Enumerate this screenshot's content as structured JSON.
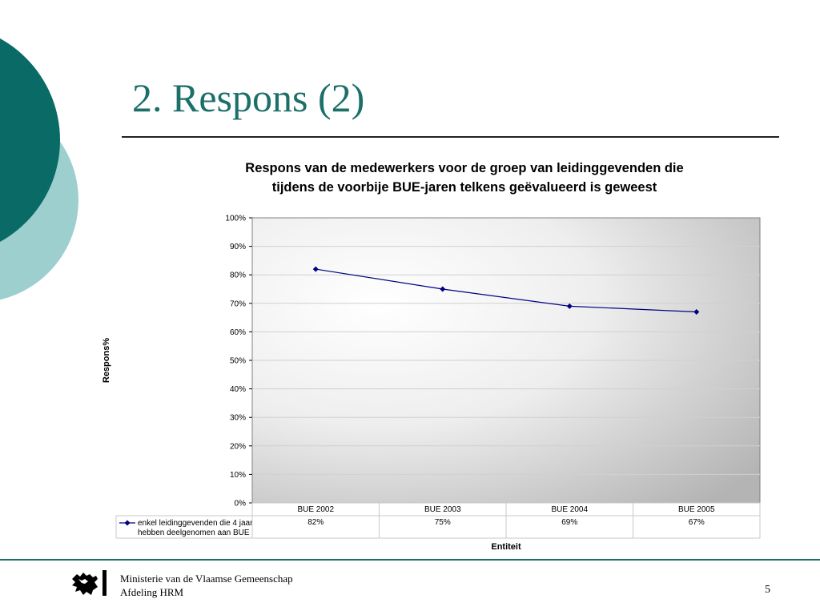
{
  "slide": {
    "title": "2. Respons (2)",
    "page_number": "5"
  },
  "footer": {
    "org_line1": "Ministerie van de Vlaamse Gemeenschap",
    "org_line2": "Afdeling HRM"
  },
  "colors": {
    "accent_dark": "#0a6b66",
    "accent_light": "#9ecfcf",
    "series": "#000080"
  },
  "chart_data": {
    "type": "line",
    "title_lines": [
      "Respons van de medewerkers voor de groep van leidinggevenden die",
      "tijdens de voorbije BUE-jaren telkens geëvalueerd is geweest"
    ],
    "xlabel": "Entiteit",
    "ylabel": "Respons%",
    "ylim": [
      0,
      100
    ],
    "yticks": [
      "0%",
      "10%",
      "20%",
      "30%",
      "40%",
      "50%",
      "60%",
      "70%",
      "80%",
      "90%",
      "100%"
    ],
    "categories": [
      "BUE 2002",
      "BUE 2003",
      "BUE 2004",
      "BUE 2005"
    ],
    "series": [
      {
        "name_lines": [
          "enkel leidinggevenden die 4 jaar",
          "hebben deelgenomen aan BUE"
        ],
        "values": [
          82,
          75,
          69,
          67
        ],
        "labels": [
          "82%",
          "75%",
          "69%",
          "67%"
        ]
      }
    ],
    "grid": true,
    "legend": "data-table"
  }
}
